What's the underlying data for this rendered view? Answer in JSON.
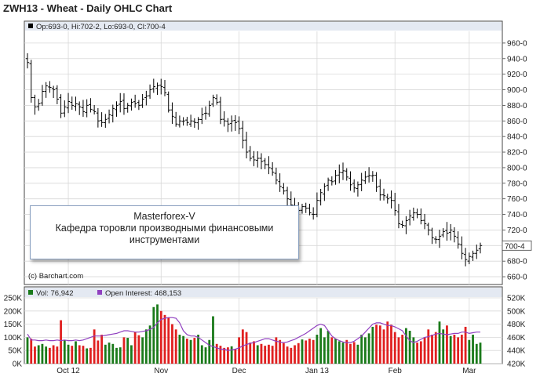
{
  "chart_data": {
    "title": "ZWH13 - Wheat - Daily OHLC Chart",
    "price_panel": {
      "type": "ohlc",
      "legend": "Op:693-0, Hi:702-2, Lo:693-0, Cl:700-4",
      "last_price_label": "700-4",
      "ylim": [
        650,
        975
      ],
      "yticks": [
        "960-0",
        "940-0",
        "920-0",
        "900-0",
        "880-0",
        "860-0",
        "840-0",
        "820-0",
        "800-0",
        "780-0",
        "760-0",
        "740-0",
        "720-0",
        "700-0",
        "680-0",
        "660-0"
      ],
      "ytick_values": [
        960,
        940,
        920,
        900,
        880,
        860,
        840,
        820,
        800,
        780,
        760,
        740,
        720,
        700,
        680,
        660
      ],
      "credit": "(c) Barchart.com",
      "closes": [
        935,
        890,
        878,
        882,
        898,
        905,
        903,
        900,
        888,
        870,
        878,
        885,
        880,
        882,
        878,
        872,
        880,
        875,
        872,
        860,
        858,
        862,
        868,
        876,
        880,
        885,
        876,
        880,
        884,
        882,
        880,
        888,
        892,
        900,
        904,
        905,
        904,
        896,
        874,
        866,
        856,
        860,
        860,
        858,
        860,
        858,
        862,
        868,
        870,
        880,
        890,
        884,
        862,
        860,
        856,
        860,
        858,
        850,
        835,
        820,
        812,
        810,
        812,
        808,
        804,
        800,
        794,
        784,
        776,
        770,
        760,
        752,
        750,
        745,
        750,
        748,
        742,
        740,
        758,
        768,
        776,
        784,
        782,
        790,
        794,
        796,
        788,
        778,
        774,
        778,
        784,
        788,
        790,
        790,
        775,
        765,
        764,
        760,
        758,
        745,
        728,
        726,
        732,
        738,
        742,
        740,
        732,
        728,
        720,
        710,
        708,
        712,
        718,
        716,
        720,
        712,
        702,
        690,
        682,
        686,
        690,
        694,
        700
      ]
    },
    "volume_panel": {
      "legend_vol": "Vol: 76,942",
      "legend_oi": "Open Interest: 468,153",
      "left_ylim": [
        0,
        250000
      ],
      "left_ticks": [
        "250K",
        "200K",
        "150K",
        "100K",
        "50K",
        "0K"
      ],
      "right_ylim": [
        420000,
        520000
      ],
      "right_ticks": [
        "520K",
        "500K",
        "480K",
        "460K",
        "440K",
        "420K"
      ],
      "colors": {
        "up": "#1a7a1a",
        "down": "#e02020",
        "oi": "#9040c0"
      },
      "volumes": [
        100000,
        95000,
        65000,
        70000,
        75000,
        65000,
        60000,
        70000,
        65000,
        165000,
        90000,
        72000,
        68000,
        85000,
        70000,
        68000,
        58000,
        60000,
        130000,
        88000,
        110000,
        72000,
        80000,
        75000,
        60000,
        62000,
        100000,
        98000,
        70000,
        120000,
        108000,
        100000,
        130000,
        145000,
        215000,
        225000,
        200000,
        185000,
        175000,
        150000,
        130000,
        110000,
        105000,
        95000,
        90000,
        98000,
        110000,
        70000,
        62000,
        90000,
        180000,
        75000,
        68000,
        60000,
        62000,
        66000,
        55000,
        100000,
        130000,
        120000,
        80000,
        85000,
        70000,
        75000,
        68000,
        72000,
        68000,
        100000,
        90000,
        78000,
        65000,
        60000,
        70000,
        78000,
        92000,
        88000,
        95000,
        90000,
        110000,
        135000,
        100000,
        125000,
        100000,
        95000,
        85000,
        80000,
        90000,
        75000,
        82000,
        72000,
        110000,
        100000,
        115000,
        140000,
        148000,
        145000,
        130000,
        160000,
        148000,
        120000,
        100000,
        110000,
        135000,
        125000,
        100000,
        80000,
        85000,
        100000,
        130000,
        110000,
        120000,
        160000,
        130000,
        145000,
        105000,
        110000,
        100000,
        110000,
        140000,
        90000,
        110000,
        75000,
        80000
      ],
      "open_interest": [
        465000,
        456000,
        456000,
        455000,
        455000,
        456000,
        455000,
        455000,
        456000,
        455000,
        456000,
        455000,
        455000,
        456000,
        455000,
        456000,
        458000,
        460000,
        462000,
        462000,
        462000,
        463000,
        464000,
        465000,
        466000,
        468000,
        470000,
        470000,
        469000,
        468000,
        468000,
        469000,
        470000,
        472000,
        475000,
        482000,
        487000,
        489000,
        490000,
        490000,
        489000,
        482000,
        470000,
        464000,
        462000,
        462000,
        460000,
        456000,
        452000,
        448000,
        446000,
        444000,
        442000,
        442000,
        440000,
        441000,
        442000,
        444000,
        447000,
        449000,
        451000,
        452000,
        454000,
        456000,
        458000,
        458000,
        456000,
        454000,
        453000,
        452000,
        453000,
        455000,
        457000,
        460000,
        463000,
        466000,
        470000,
        474000,
        478000,
        480000,
        478000,
        470000,
        462000,
        458000,
        455000,
        453000,
        452000,
        452000,
        454000,
        458000,
        462000,
        468000,
        474000,
        480000,
        482000,
        482000,
        480000,
        478000,
        478000,
        476000,
        473000,
        470000,
        462000,
        455000,
        452000,
        454000,
        457000,
        460000,
        461000,
        463000,
        465000,
        466000,
        465000,
        464000,
        465000,
        466000,
        466000,
        468000,
        468000,
        466000,
        467000,
        468000,
        468000
      ]
    },
    "x_axis": {
      "labels": [
        "Oct 12",
        "Nov",
        "Dec",
        "Jan 13",
        "Feb",
        "Mar"
      ]
    }
  },
  "watermark": {
    "line1": "Masterforex-V",
    "line2": "Кафедра торовли производными финансовыми",
    "line3": "инструментами"
  }
}
